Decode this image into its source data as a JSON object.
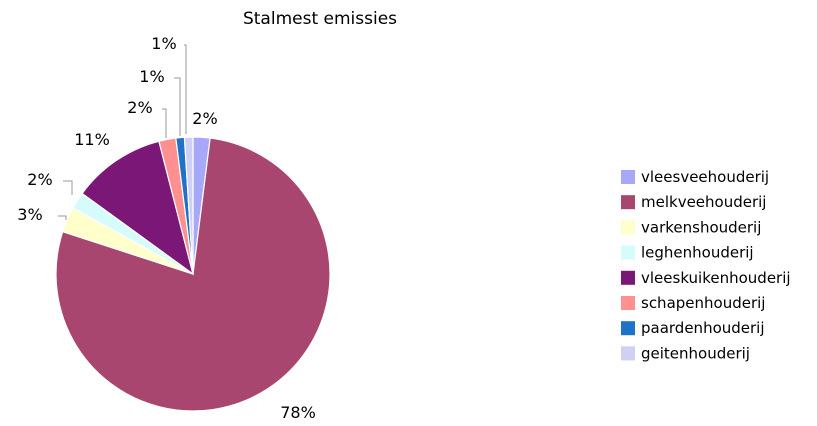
{
  "chart_data": {
    "type": "pie",
    "title": "Stalmest emissies",
    "legend_position": "right",
    "slices": [
      {
        "label": "vleesveehouderij",
        "value": 2,
        "value_label": "2%",
        "color": "#A8A8F8"
      },
      {
        "label": "melkveehouderij",
        "value": 78,
        "value_label": "78%",
        "color": "#A8466F"
      },
      {
        "label": "varkenshouderij",
        "value": 3,
        "value_label": "3%",
        "color": "#FFFFCC"
      },
      {
        "label": "leghenhouderij",
        "value": 2,
        "value_label": "2%",
        "color": "#D6FBFB"
      },
      {
        "label": "vleeskuikenhouderij",
        "value": 11,
        "value_label": "11%",
        "color": "#7A1777"
      },
      {
        "label": "schapenhouderij",
        "value": 2,
        "value_label": "2%",
        "color": "#FF9090"
      },
      {
        "label": "paardenhouderij",
        "value": 1,
        "value_label": "1%",
        "color": "#1E72C8"
      },
      {
        "label": "geitenhouderij",
        "value": 1,
        "value_label": "1%",
        "color": "#D0D0F4"
      }
    ]
  }
}
